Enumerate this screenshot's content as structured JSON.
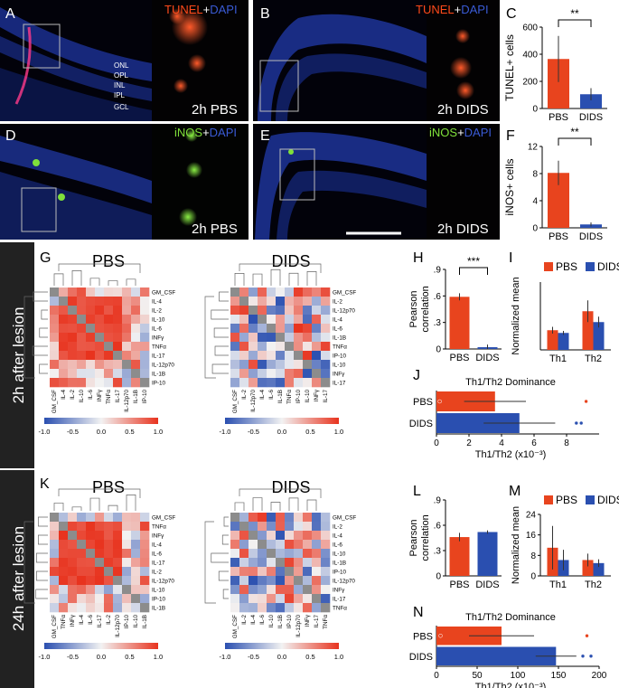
{
  "colors": {
    "pbs": "#e8441e",
    "dids": "#2a4fb0",
    "tunel": "#ff4a1a",
    "dapi": "#3a5bd6",
    "inos": "#7fe03a",
    "mid": "#f2f2f2",
    "diag": "#8c8c8c"
  },
  "panels": {
    "A": "A",
    "B": "B",
    "C": "C",
    "D": "D",
    "E": "E",
    "F": "F",
    "G": "G",
    "H": "H",
    "I": "I",
    "J": "J",
    "K": "K",
    "L": "L",
    "M": "M",
    "N": "N"
  },
  "micro": {
    "tunel": "TUNEL",
    "inos": "iNOS",
    "plus": "+",
    "dapi": "DAPI",
    "layers": [
      "ONL",
      "OPL",
      "INL",
      "IPL",
      "GCL"
    ],
    "pbs_2h": "2h PBS",
    "dids_2h": "2h DIDS"
  },
  "sections": {
    "s2h": "2h after lesion",
    "s24h": "24h after lesion"
  },
  "heat": {
    "pbs_title": "PBS",
    "dids_title": "DIDS",
    "cbar_ticks": [
      "-1.0",
      "-0.5",
      "0.0",
      "0.5",
      "1.0"
    ],
    "g_pbs": {
      "rows": [
        "GM_CSF",
        "IL-4",
        "IL-2",
        "IL-10",
        "IL-6",
        "INFγ",
        "TNFα",
        "IL-17",
        "IL-12p70",
        "IL-1B",
        "IP-10"
      ],
      "cols": [
        "GM_CSF",
        "IL-4",
        "IL-2",
        "IL-10",
        "IL-6",
        "INFγ",
        "TNFα",
        "IL-17",
        "IL-12p70",
        "IL-1B",
        "IP-10"
      ]
    },
    "g_dids": {
      "rows": [
        "GM_CSF",
        "IL-2",
        "IL-12p70",
        "IL-4",
        "IL-6",
        "IL-1B",
        "TNFα",
        "IP-10",
        "IL-10",
        "INFγ",
        "IL-17"
      ],
      "cols": [
        "GM_CSF",
        "IL-2",
        "IL-12p70",
        "IL-4",
        "IL-6",
        "IL-1B",
        "TNFα",
        "IP-10",
        "IL-10",
        "INFγ",
        "IL-17"
      ]
    },
    "k_pbs": {
      "rows": [
        "GM_CSF",
        "TNFα",
        "INFγ",
        "IL-4",
        "IL-6",
        "IL-17",
        "IL-2",
        "IL-12p70",
        "IL-10",
        "IP-10",
        "IL-1B"
      ],
      "cols": [
        "GM_CSF",
        "TNFα",
        "INFγ",
        "IL-4",
        "IL-6",
        "IL-17",
        "IL-2",
        "IL-12p70",
        "IP-10",
        "IL-10",
        "IL-1B"
      ]
    },
    "k_dids": {
      "rows": [
        "GM_CSF",
        "IL-2",
        "IL-4",
        "IL-6",
        "IL-10",
        "IL-1B",
        "IP-10",
        "IL-12p70",
        "INFγ",
        "IL-17",
        "TNFα"
      ],
      "cols": [
        "GM_CSF",
        "IL-2",
        "IL-4",
        "IL-6",
        "IL-10",
        "IL-1B",
        "IP-10",
        "IL-12p70",
        "INFγ",
        "IL-17",
        "TNFα"
      ]
    }
  },
  "chart_data": [
    {
      "id": "C",
      "type": "bar",
      "ylabel": "TUNEL+ cells",
      "categories": [
        "PBS",
        "DIDS"
      ],
      "values": [
        365,
        105
      ],
      "errors": [
        170,
        45
      ],
      "ylim": [
        0,
        600
      ],
      "yticks": [
        0,
        200,
        400,
        600
      ],
      "sig": "**"
    },
    {
      "id": "F",
      "type": "bar",
      "ylabel": "iNOS+ cells",
      "categories": [
        "PBS",
        "DIDS"
      ],
      "values": [
        8.1,
        0.5
      ],
      "errors": [
        1.8,
        0.3
      ],
      "ylim": [
        0,
        12
      ],
      "yticks": [
        0,
        4,
        8,
        12
      ],
      "sig": "**"
    },
    {
      "id": "H",
      "type": "bar",
      "ylabel": "Pearson correlation",
      "categories": [
        "PBS",
        "DIDS"
      ],
      "values": [
        0.59,
        0.02
      ],
      "errors": [
        0.04,
        0.03
      ],
      "ylim": [
        0,
        0.9
      ],
      "yticks": [
        0,
        0.3,
        0.6,
        0.9
      ],
      "ytick_labels": [
        "0",
        ".3",
        ".6",
        ".9"
      ],
      "sig": "***"
    },
    {
      "id": "I",
      "type": "bar",
      "ylabel": "Normalized mean",
      "categories": [
        "Th1",
        "Th2"
      ],
      "series": [
        {
          "name": "PBS",
          "values": [
            2.9,
            5.7
          ],
          "errors": [
            0.5,
            1.6
          ]
        },
        {
          "name": "DIDS",
          "values": [
            2.5,
            4.1
          ],
          "errors": [
            0.3,
            0.8
          ]
        }
      ],
      "ylim": [
        0,
        10
      ],
      "legend": [
        "PBS",
        "DIDS"
      ]
    },
    {
      "id": "J",
      "type": "bar",
      "orientation": "horizontal",
      "title": "Th1/Th2 Dominance",
      "xlabel": "Th1/Th2 (x10⁻³)",
      "categories": [
        "PBS",
        "DIDS"
      ],
      "values": [
        3.6,
        5.1
      ],
      "errors": [
        1.9,
        2.2
      ],
      "xlim": [
        0,
        10
      ],
      "xticks": [
        0,
        2,
        4,
        6,
        8
      ],
      "points": [
        [
          0.2,
          9.2
        ],
        [
          8.6,
          8.9
        ]
      ]
    },
    {
      "id": "L",
      "type": "bar",
      "ylabel": "Pearson correlation",
      "categories": [
        "PBS",
        "DIDS"
      ],
      "values": [
        0.46,
        0.52
      ],
      "errors": [
        0.05,
        0.02
      ],
      "ylim": [
        0,
        0.9
      ],
      "yticks": [
        0,
        0.3,
        0.6,
        0.9
      ],
      "ytick_labels": [
        "0",
        ".3",
        ".6",
        ".9"
      ]
    },
    {
      "id": "M",
      "type": "bar",
      "ylabel": "Normalized mean",
      "categories": [
        "Th1",
        "Th2"
      ],
      "series": [
        {
          "name": "PBS",
          "values": [
            11,
            6.2
          ],
          "errors": [
            8.5,
            2.5
          ]
        },
        {
          "name": "DIDS",
          "values": [
            6.2,
            5
          ],
          "errors": [
            4,
            1.5
          ]
        }
      ],
      "ylim": [
        0,
        24
      ],
      "yticks": [
        0,
        8,
        16,
        24
      ],
      "legend": [
        "PBS",
        "DIDS"
      ]
    },
    {
      "id": "N",
      "type": "bar",
      "orientation": "horizontal",
      "title": "Th1/Th2 Dominance",
      "xlabel": "Th1/Th2 (x10⁻³)",
      "categories": [
        "PBS",
        "DIDS"
      ],
      "values": [
        80,
        147
      ],
      "errors": [
        40,
        25
      ],
      "xlim": [
        0,
        200
      ],
      "xticks": [
        0,
        50,
        100,
        150,
        200
      ],
      "points": [
        [
          5,
          185
        ],
        [
          180,
          190
        ]
      ]
    }
  ]
}
